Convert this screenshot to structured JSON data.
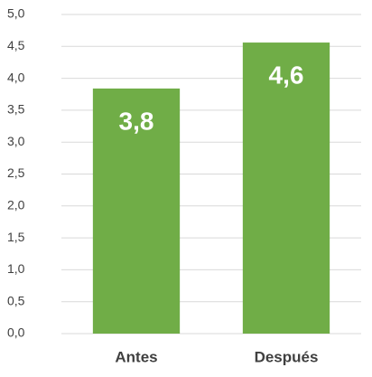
{
  "chart_data": {
    "type": "bar",
    "categories": [
      "Antes",
      "Después"
    ],
    "values": [
      3.84,
      4.56
    ],
    "value_labels": [
      "3,8",
      "4,6"
    ],
    "color": "#70ad47",
    "ylim": [
      0,
      5
    ],
    "yticks": [
      {
        "value": 0,
        "label": "0,0"
      },
      {
        "value": 0.5,
        "label": "0,5"
      },
      {
        "value": 1,
        "label": "1,0"
      },
      {
        "value": 1.5,
        "label": "1,5"
      },
      {
        "value": 2,
        "label": "2,0"
      },
      {
        "value": 2.5,
        "label": "2,5"
      },
      {
        "value": 3,
        "label": "3,0"
      },
      {
        "value": 3.5,
        "label": "3,5"
      },
      {
        "value": 4,
        "label": "4,0"
      },
      {
        "value": 4.5,
        "label": "4,5"
      },
      {
        "value": 5,
        "label": "5,0"
      }
    ],
    "grid": true
  }
}
